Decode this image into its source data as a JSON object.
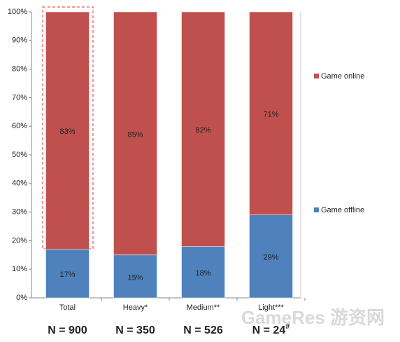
{
  "chart_data": {
    "type": "stacked_bar",
    "categories": [
      "Total",
      "Heavy*",
      "Medium**",
      "Light***"
    ],
    "series": [
      {
        "name": "Game offline",
        "color": "#4f81bd",
        "values": [
          17,
          15,
          18,
          29
        ],
        "value_labels": [
          "17%",
          "15%",
          "18%",
          "29%"
        ]
      },
      {
        "name": "Game online",
        "color": "#c0504d",
        "values": [
          83,
          85,
          82,
          71
        ],
        "value_labels": [
          "83%",
          "85%",
          "82%",
          "71%"
        ]
      }
    ],
    "ylim": [
      0,
      100
    ],
    "yticks": [
      {
        "value": 0,
        "label": "0%"
      },
      {
        "value": 10,
        "label": "10%"
      },
      {
        "value": 20,
        "label": "20%"
      },
      {
        "value": 30,
        "label": "30%"
      },
      {
        "value": 40,
        "label": "40%"
      },
      {
        "value": 50,
        "label": "50%"
      },
      {
        "value": 60,
        "label": "60%"
      },
      {
        "value": 70,
        "label": "70%"
      },
      {
        "value": 80,
        "label": "80%"
      },
      {
        "value": 90,
        "label": "90%"
      },
      {
        "value": 100,
        "label": "100%"
      }
    ],
    "n_labels": [
      "N = 900",
      "N = 350",
      "N = 526",
      "N = 24"
    ],
    "n_label_footnote": "#",
    "watermark": "GameRes 游资网",
    "legend": "right"
  }
}
